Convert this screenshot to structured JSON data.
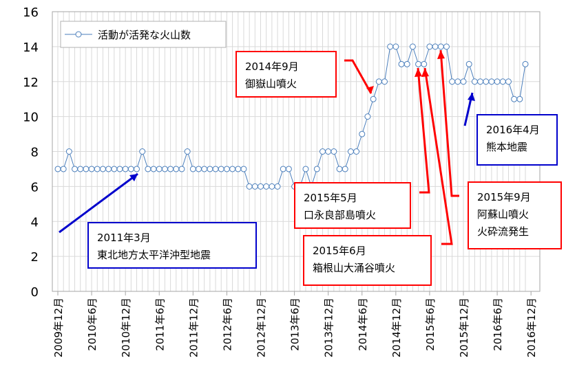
{
  "chart_data": {
    "type": "line",
    "legend": [
      "活動が活発な火山数"
    ],
    "legend_placement": "top-left",
    "ylim": [
      0,
      16
    ],
    "yticks": [
      0,
      2,
      4,
      6,
      8,
      10,
      12,
      14,
      16
    ],
    "grid": true,
    "xtick_labels": [
      "2009年12月",
      "2010年6月",
      "2010年12月",
      "2011年6月",
      "2011年12月",
      "2012年6月",
      "2012年12月",
      "2013年6月",
      "2013年12月",
      "2014年6月",
      "2014年12月",
      "2015年6月",
      "2015年12月",
      "2016年6月",
      "2016年12月"
    ],
    "series": [
      {
        "name": "活動が活発な火山数",
        "color": "#4a7ebb",
        "values": [
          7,
          7,
          8,
          7,
          7,
          7,
          7,
          7,
          7,
          7,
          7,
          7,
          7,
          7,
          7,
          8,
          7,
          7,
          7,
          7,
          7,
          7,
          7,
          8,
          7,
          7,
          7,
          7,
          7,
          7,
          7,
          7,
          7,
          7,
          6,
          6,
          6,
          6,
          6,
          6,
          7,
          7,
          6,
          6,
          7,
          6,
          7,
          8,
          8,
          8,
          7,
          7,
          8,
          8,
          9,
          10,
          11,
          12,
          12,
          14,
          14,
          13,
          13,
          14,
          13,
          13,
          14,
          14,
          14,
          14,
          12,
          12,
          12,
          13,
          12,
          12,
          12,
          12,
          12,
          12,
          12,
          11,
          11,
          13
        ]
      }
    ],
    "annotations": [
      {
        "lines": [
          "2014年9月",
          "御嶽山噴火"
        ],
        "color": "#ff0000"
      },
      {
        "lines": [
          "2015年5月",
          "口永良部島噴火"
        ],
        "color": "#ff0000"
      },
      {
        "lines": [
          "2015年6月",
          "箱根山大涌谷噴火"
        ],
        "color": "#ff0000"
      },
      {
        "lines": [
          "2015年9月",
          "阿蘇山噴火",
          "火砕流発生"
        ],
        "color": "#ff0000"
      },
      {
        "lines": [
          "2011年3月",
          "東北地方太平洋沖型地震"
        ],
        "color": "#0000cc"
      },
      {
        "lines": [
          "2016年4月",
          "熊本地震"
        ],
        "color": "#0000cc"
      }
    ]
  }
}
